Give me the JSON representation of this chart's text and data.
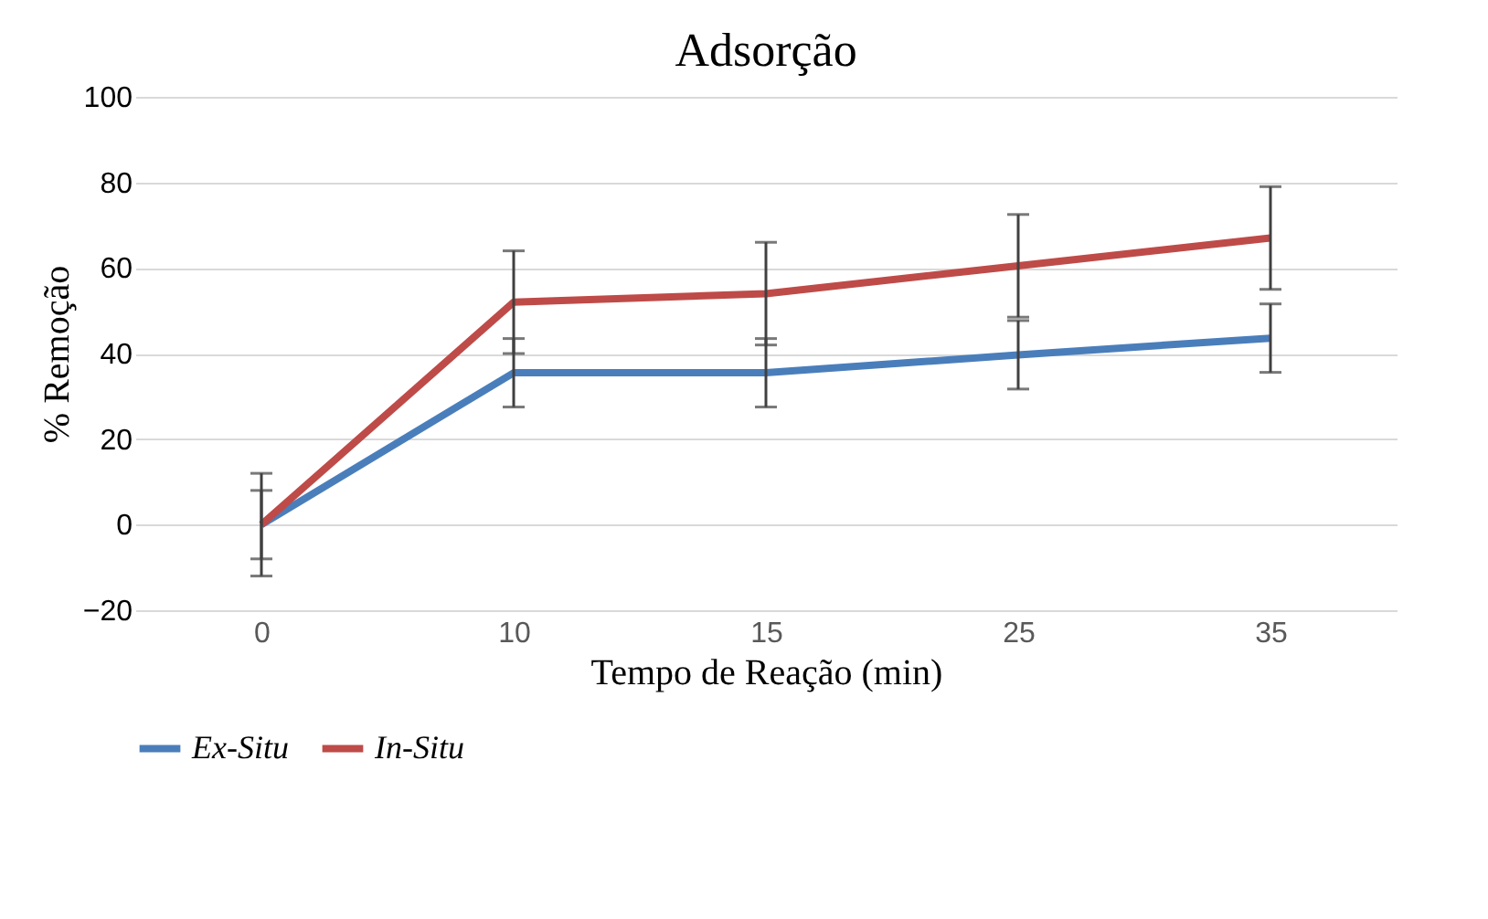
{
  "chart_data": {
    "type": "line",
    "title": "Adsorção",
    "xlabel": "Tempo de Reação (min)",
    "ylabel": "% Remoção",
    "categories": [
      "0",
      "10",
      "15",
      "25",
      "35"
    ],
    "series": [
      {
        "name": "Ex-Situ",
        "color": "#4a7ebb",
        "values": [
          0,
          35.5,
          35.5,
          39.7,
          43.6
        ],
        "errors": [
          8,
          8,
          8,
          8,
          8
        ]
      },
      {
        "name": "In-Situ",
        "color": "#be4b48",
        "values": [
          0,
          52,
          54,
          60.5,
          67
        ],
        "errors": [
          12,
          12,
          12,
          12,
          12
        ]
      }
    ],
    "ylim": [
      -20,
      100
    ],
    "yticks": [
      -20,
      0,
      20,
      40,
      60,
      80,
      100
    ],
    "grid": "y",
    "legend": "bottom",
    "marker": "none",
    "line_style": "solid"
  }
}
